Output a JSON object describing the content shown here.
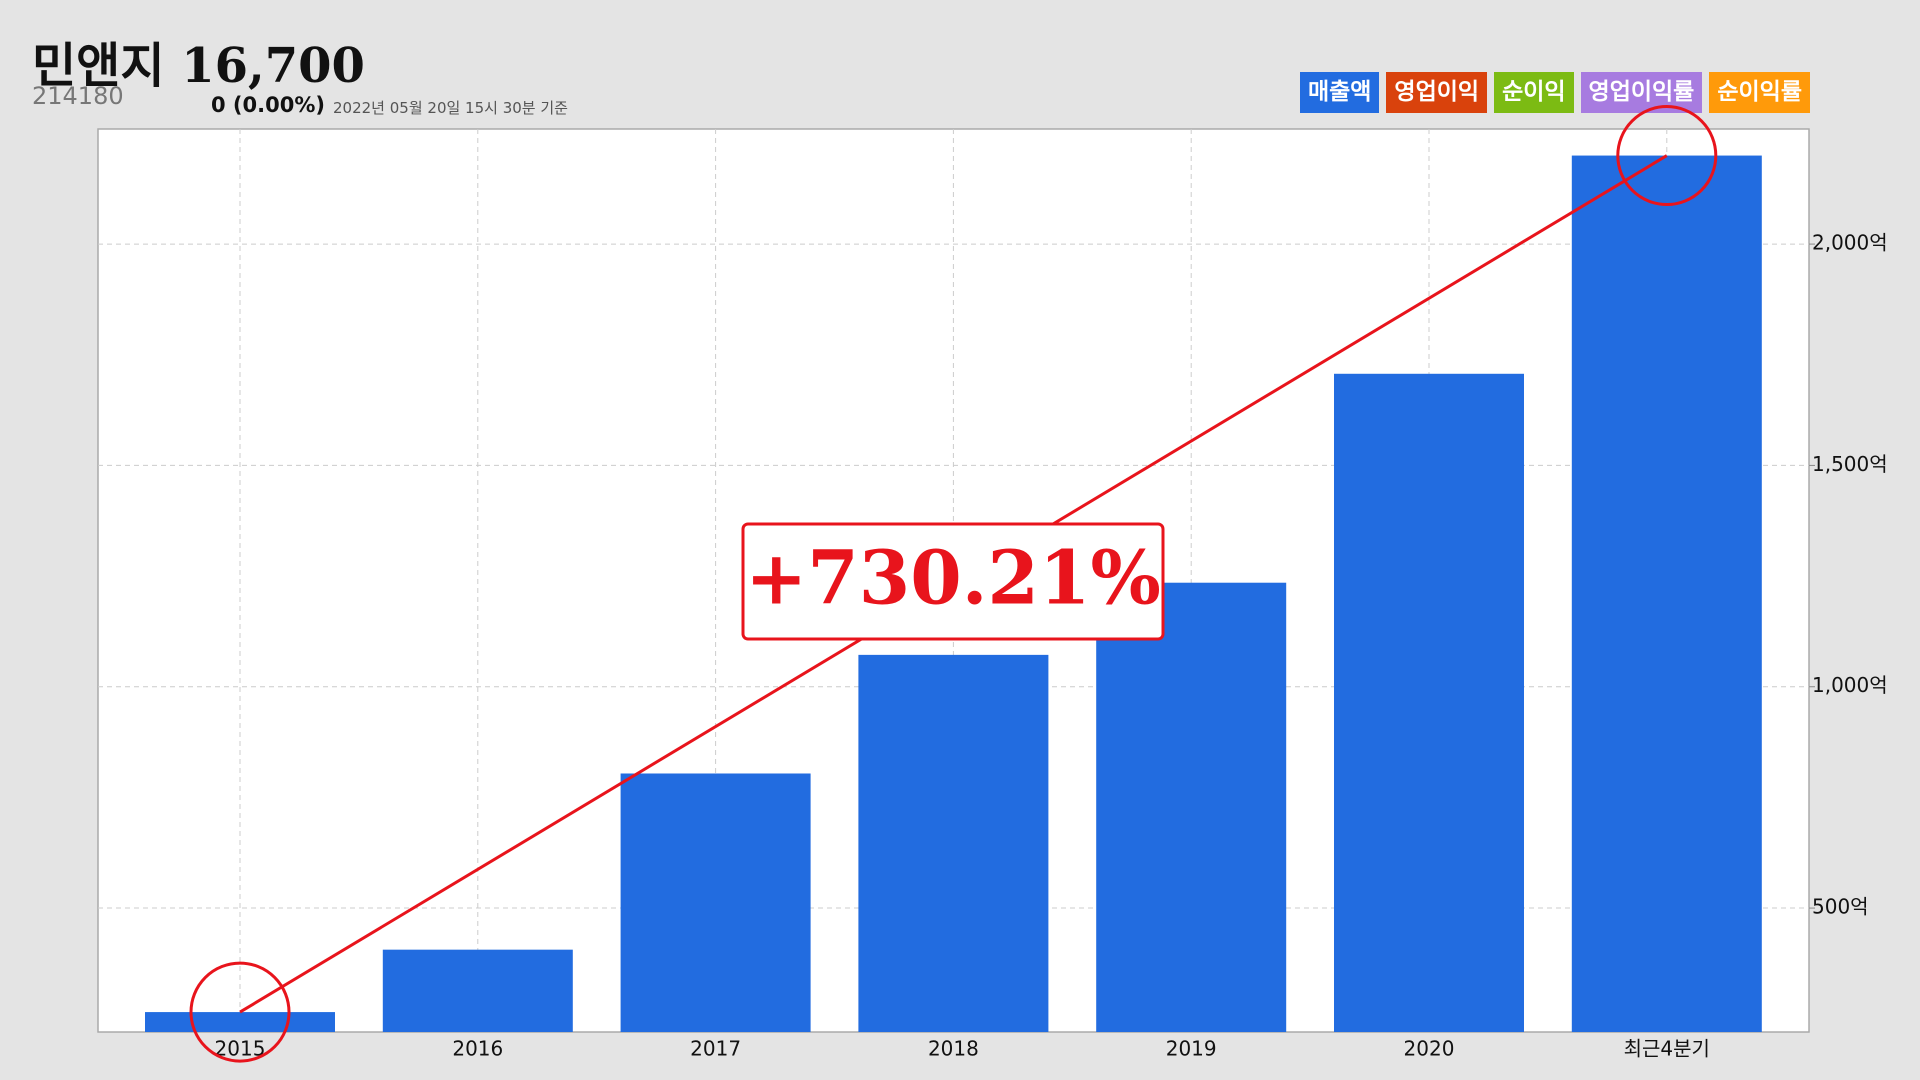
{
  "header": {
    "name": "민앤지",
    "price": "16,700",
    "code": "214180",
    "change": "0 (0.00%)",
    "timestamp": "2022년 05월 20일 15시 30분 기준"
  },
  "chart_data": {
    "type": "bar",
    "categories": [
      "2015",
      "2016",
      "2017",
      "2018",
      "2019",
      "2020",
      "최근4분기"
    ],
    "series": [
      {
        "name": "매출액",
        "color": "#226ce0",
        "values": [
          265,
          406,
          804,
          1072,
          1235,
          1707,
          2200
        ]
      }
    ],
    "toggles": [
      {
        "name": "영업이익",
        "color": "#d9420c"
      },
      {
        "name": "순이익",
        "color": "#7cbb13"
      },
      {
        "name": "영업이익률",
        "color": "#a77be0"
      },
      {
        "name": "순이익률",
        "color": "#ff9a0a"
      }
    ],
    "ylim": [
      220,
      2260
    ],
    "yticks": [
      {
        "value": 500,
        "label": "500억"
      },
      {
        "value": 1000,
        "label": "1,000억"
      },
      {
        "value": 1500,
        "label": "1,500억"
      },
      {
        "value": 2000,
        "label": "2,000억"
      }
    ],
    "grid": true,
    "annotation": "+730.21%"
  }
}
